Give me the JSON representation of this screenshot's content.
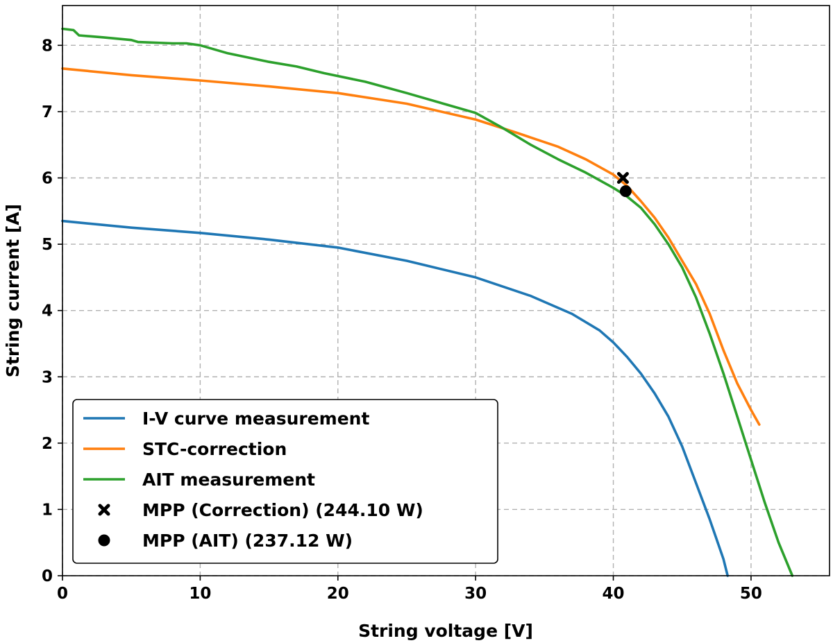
{
  "chart_data": {
    "type": "line",
    "xlabel": "String voltage [V]",
    "ylabel": "String current [A]",
    "xlim": [
      0,
      55.7
    ],
    "ylim": [
      0,
      8.6
    ],
    "xticks": [
      0,
      10,
      20,
      30,
      40,
      50
    ],
    "yticks": [
      0,
      1,
      2,
      3,
      4,
      5,
      6,
      7,
      8
    ],
    "grid": true,
    "legend_position": "bottom-left",
    "series": [
      {
        "name": "I-V curve measurement",
        "color": "#1f77b4",
        "x": [
          0,
          5,
          10,
          15,
          20,
          25,
          30,
          34,
          37,
          39,
          40,
          41,
          42,
          43,
          44,
          45,
          46,
          47,
          47.5,
          48,
          48.3
        ],
        "y": [
          5.35,
          5.25,
          5.17,
          5.07,
          4.95,
          4.75,
          4.5,
          4.22,
          3.95,
          3.7,
          3.52,
          3.3,
          3.05,
          2.75,
          2.4,
          1.95,
          1.4,
          0.85,
          0.55,
          0.25,
          0
        ]
      },
      {
        "name": "STC-correction",
        "color": "#ff7f0e",
        "x": [
          0,
          5,
          10,
          15,
          20,
          25,
          30,
          33,
          36,
          38,
          40,
          41,
          42,
          43,
          44,
          45,
          46,
          47,
          48,
          49,
          50,
          50.6
        ],
        "y": [
          7.65,
          7.55,
          7.47,
          7.38,
          7.28,
          7.12,
          6.88,
          6.68,
          6.47,
          6.28,
          6.05,
          5.88,
          5.65,
          5.4,
          5.1,
          4.75,
          4.4,
          3.95,
          3.4,
          2.9,
          2.5,
          2.28
        ]
      },
      {
        "name": "AIT measurement",
        "color": "#2ca02c",
        "x": [
          0,
          0.8,
          1.2,
          3,
          5,
          5.5,
          8,
          9,
          10,
          12,
          15,
          17,
          19,
          22,
          25,
          28,
          30,
          32,
          34,
          36,
          38,
          40,
          41,
          42,
          43,
          44,
          45,
          46,
          47,
          48,
          49,
          50,
          51,
          52,
          53
        ],
        "y": [
          8.25,
          8.23,
          8.15,
          8.12,
          8.08,
          8.05,
          8.03,
          8.03,
          8.0,
          7.88,
          7.75,
          7.68,
          7.58,
          7.45,
          7.28,
          7.1,
          6.98,
          6.75,
          6.5,
          6.28,
          6.08,
          5.85,
          5.72,
          5.55,
          5.3,
          5.0,
          4.65,
          4.2,
          3.65,
          3.05,
          2.4,
          1.75,
          1.1,
          0.5,
          0
        ]
      }
    ],
    "markers": [
      {
        "name": "MPP (Correction) (244.10 W)",
        "symbol": "x",
        "x": 40.7,
        "y": 6.0
      },
      {
        "name": "MPP (AIT) (237.12 W)",
        "symbol": "o",
        "x": 40.9,
        "y": 5.8
      }
    ]
  }
}
